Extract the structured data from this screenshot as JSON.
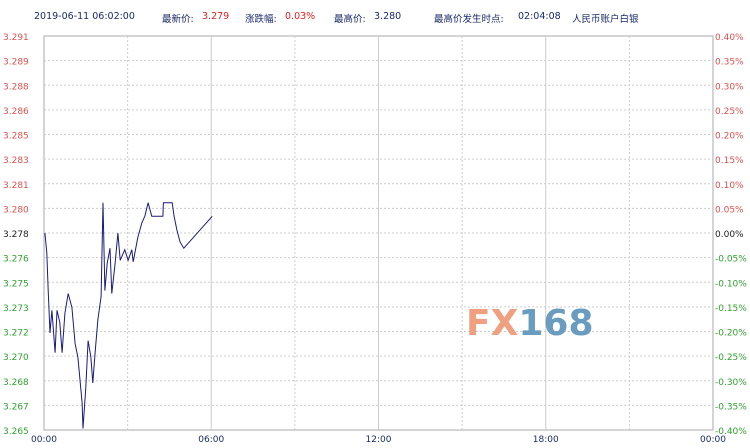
{
  "header": {
    "datetime": "2019-06-11 06:02:00",
    "latest_label": "最新价:",
    "latest": "3.279",
    "change_label": "涨跌幅:",
    "change": "0.03%",
    "high_label": "最高价:",
    "high": "3.280",
    "high_time_label": "最高价发生时点:",
    "high_time": "02:04:08",
    "instrument": "人民币账户白银"
  },
  "watermark": {
    "text1": "FX",
    "text2": "168",
    "color1": "#f0a080",
    "color2": "#6a9cc0"
  },
  "chart_data": {
    "type": "line",
    "series_color": "#1a1a80",
    "up_color": "#e05050",
    "down_color": "#30a030",
    "ylim": [
      3.265,
      3.291
    ],
    "y_ticks": [
      "3.291",
      "3.289",
      "3.288",
      "3.286",
      "3.285",
      "3.283",
      "3.281",
      "3.280",
      "3.278",
      "3.276",
      "3.275",
      "3.273",
      "3.272",
      "3.270",
      "3.268",
      "3.267",
      "3.265"
    ],
    "y2_ticks": [
      "0.40%",
      "0.35%",
      "0.30%",
      "0.25%",
      "0.20%",
      "0.15%",
      "0.10%",
      "0.05%",
      "0.00%",
      "-0.05%",
      "-0.10%",
      "-0.15%",
      "-0.20%",
      "-0.25%",
      "-0.30%",
      "-0.35%",
      "-0.40%"
    ],
    "x_ticks": [
      "00:00",
      "06:00",
      "12:00",
      "18:00",
      "00:00"
    ],
    "xlim_hours": [
      0,
      24
    ],
    "grid": true,
    "points": [
      [
        "00:02",
        3.278
      ],
      [
        "00:06",
        3.2767
      ],
      [
        "00:09",
        3.2742
      ],
      [
        "00:13",
        3.2714
      ],
      [
        "00:17",
        3.2729
      ],
      [
        "00:24",
        3.2701
      ],
      [
        "00:28",
        3.2729
      ],
      [
        "00:34",
        3.2721
      ],
      [
        "00:39",
        3.2701
      ],
      [
        "00:45",
        3.2727
      ],
      [
        "00:52",
        3.274
      ],
      [
        "01:00",
        3.2731
      ],
      [
        "01:07",
        3.2707
      ],
      [
        "01:13",
        3.2698
      ],
      [
        "01:22",
        3.2668
      ],
      [
        "01:24",
        3.2651
      ],
      [
        "01:30",
        3.2678
      ],
      [
        "01:35",
        3.2709
      ],
      [
        "01:41",
        3.2698
      ],
      [
        "01:45",
        3.2681
      ],
      [
        "01:50",
        3.2701
      ],
      [
        "01:56",
        3.2723
      ],
      [
        "02:03",
        3.2738
      ],
      [
        "02:07",
        3.28
      ],
      [
        "02:11",
        3.2742
      ],
      [
        "02:16",
        3.276
      ],
      [
        "02:22",
        3.277
      ],
      [
        "02:26",
        3.274
      ],
      [
        "02:33",
        3.276
      ],
      [
        "02:39",
        3.278
      ],
      [
        "02:44",
        3.2762
      ],
      [
        "02:54",
        3.2769
      ],
      [
        "03:01",
        3.2762
      ],
      [
        "03:09",
        3.2769
      ],
      [
        "03:12",
        3.2761
      ],
      [
        "03:22",
        3.2777
      ],
      [
        "03:31",
        3.2787
      ],
      [
        "03:37",
        3.2791
      ],
      [
        "03:44",
        3.28
      ],
      [
        "03:52",
        3.2791
      ],
      [
        "04:16",
        3.2791
      ],
      [
        "04:17",
        3.28
      ],
      [
        "04:36",
        3.28
      ],
      [
        "04:40",
        3.2791
      ],
      [
        "04:46",
        3.2782
      ],
      [
        "04:53",
        3.2774
      ],
      [
        "05:01",
        3.277
      ],
      [
        "06:02",
        3.2791
      ]
    ]
  }
}
